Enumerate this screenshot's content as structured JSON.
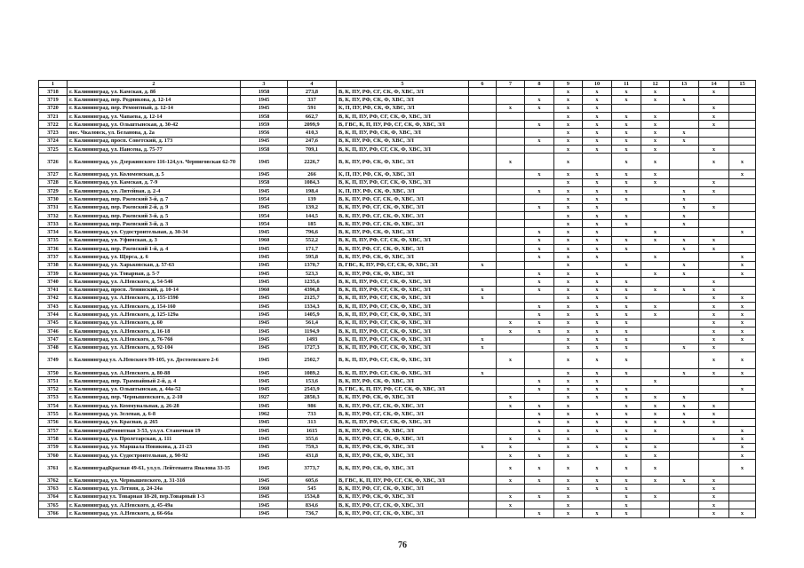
{
  "table": {
    "headers": [
      "1",
      "2",
      "3",
      "4",
      "5",
      "6",
      "7",
      "8",
      "9",
      "10",
      "11",
      "12",
      "13",
      "14",
      "15"
    ],
    "rows": [
      {
        "id": "3718",
        "address": "г. Калининград, ул. Камская, д. 8б",
        "year": "1958",
        "area": "273,8",
        "codes": "В, К, ПУ, РФ, СГ, СК, Ф, ХВС, ЭЛ",
        "marks": [
          9,
          10,
          11,
          12,
          14
        ]
      },
      {
        "id": "3719",
        "address": "г. Калининград, пер. Родникова, д. 12-14",
        "year": "1945",
        "area": "337",
        "codes": "В, К, ПУ, РФ, СК, Ф, ХВС, ЭЛ",
        "marks": [
          8,
          9,
          10,
          11,
          12,
          13
        ]
      },
      {
        "id": "3720",
        "address": "г. Калининград, пер. Ремонтный, д. 12-14",
        "year": "1945",
        "area": "591",
        "codes": "К, П, ПУ, РФ, СК, Ф, ХВС, ЭЛ",
        "marks": [
          7,
          8,
          9,
          10,
          14
        ]
      },
      {
        "id": "3721",
        "address": "г. Калининград, ул. Чапаева, д. 12-14",
        "year": "1958",
        "area": "662,7",
        "codes": "В, К, П, ПУ, РФ, СГ, СК, Ф, ХВС, ЭЛ",
        "marks": [
          9,
          10,
          11,
          12,
          14
        ]
      },
      {
        "id": "3722",
        "address": "г. Калининград, ул. Ольштынская, д. 30-42",
        "year": "1959",
        "area": "2099,9",
        "codes": "В, ГВС, К, П, ПУ, РФ, СГ, СК, Ф, ХВС, ЭЛ",
        "marks": [
          8,
          9,
          10,
          11,
          12,
          14
        ]
      },
      {
        "id": "3723",
        "address": "пос. Чкаловск, ул. Беланова, д. 2а",
        "year": "1956",
        "area": "410,3",
        "codes": "В, К, П, ПУ, РФ, СК, Ф, ХВС, ЭЛ",
        "marks": [
          9,
          10,
          11,
          12,
          13
        ]
      },
      {
        "id": "3724",
        "address": "г. Калининград, просп. Советский, д. 173",
        "year": "1945",
        "area": "247,6",
        "codes": "В, К, ПУ, РФ, СК, Ф, ХВС, ЭЛ",
        "marks": [
          8,
          9,
          10,
          11,
          12,
          13
        ]
      },
      {
        "id": "3725",
        "address": "г. Калининград, ул. Нансена, д. 75-77",
        "year": "1958",
        "area": "709,1",
        "codes": "В, К, П, ПУ, РФ, СГ, СК, Ф, ХВС, ЭЛ",
        "marks": [
          9,
          10,
          11,
          12,
          14
        ]
      },
      {
        "id": "3726",
        "address": "г. Калининград, ул. Дзержинского 116-124,ул. Черниговская 62-70",
        "year": "1945",
        "area": "2226,7",
        "codes": "В, К, ПУ, РФ, СК, Ф, ХВС, ЭЛ",
        "marks": [
          7,
          9,
          11,
          12,
          14,
          15
        ],
        "tall": true
      },
      {
        "id": "3727",
        "address": "г. Калининград, ул. Коломенская, д. 5",
        "year": "1945",
        "area": "266",
        "codes": "К, П, ПУ, РФ, СК, Ф, ХВС, ЭЛ",
        "marks": [
          8,
          9,
          10,
          11,
          12,
          15
        ]
      },
      {
        "id": "3728",
        "address": "г. Калининград, ул. Камская, д. 7-9",
        "year": "1958",
        "area": "1084,3",
        "codes": "В, К, П, ПУ, РФ, СГ, СК, Ф, ХВС, ЭЛ",
        "marks": [
          9,
          10,
          11,
          12,
          14
        ]
      },
      {
        "id": "3729",
        "address": "г. Калининград, ул. Литейная, д. 2-4",
        "year": "1945",
        "area": "198,4",
        "codes": "К, П, ПУ, РФ, СК, Ф, ХВС, ЭЛ",
        "marks": [
          8,
          9,
          10,
          11,
          13,
          14
        ]
      },
      {
        "id": "3730",
        "address": "г. Калининград, пер. Ржевский 3-й, д. 7",
        "year": "1954",
        "area": "139",
        "codes": "В, К, ПУ, РФ, СГ, СК, Ф, ХВС, ЭЛ",
        "marks": [
          9,
          10,
          11,
          13
        ]
      },
      {
        "id": "3731",
        "address": "г. Калининград, пер. Ржевский 2-й, д. 9",
        "year": "1945",
        "area": "139,2",
        "codes": "В, К, ПУ, РФ, СГ, СК, Ф, ХВС, ЭЛ",
        "marks": [
          8,
          9,
          10,
          13,
          14
        ]
      },
      {
        "id": "3732",
        "address": "г. Калининград, пер. Ржевский 3-й, д. 5",
        "year": "1954",
        "area": "144,5",
        "codes": "В, К, ПУ, РФ, СГ, СК, Ф, ХВС, ЭЛ",
        "marks": [
          9,
          10,
          11,
          13
        ]
      },
      {
        "id": "3733",
        "address": "г. Калининград, пер. Ржевский 3-й, д. 3",
        "year": "1954",
        "area": "185",
        "codes": "В, К, ПУ, РФ, СГ, СК, Ф, ХВС, ЭЛ",
        "marks": [
          9,
          10,
          11,
          13
        ]
      },
      {
        "id": "3734",
        "address": "г. Калининград, ул. Судостроительная, д. 30-34",
        "year": "1945",
        "area": "796,6",
        "codes": "В, К, ПУ, РФ, СК, Ф, ХВС, ЭЛ",
        "marks": [
          8,
          9,
          10,
          12,
          15
        ]
      },
      {
        "id": "3735",
        "address": "г. Калининград, ул. Уфимская, д. 3",
        "year": "1960",
        "area": "552,2",
        "codes": "В, К, П, ПУ, РФ, СГ, СК, Ф, ХВС, ЭЛ",
        "marks": [
          8,
          9,
          10,
          11,
          12,
          13,
          14
        ]
      },
      {
        "id": "3736",
        "address": "г. Калининград, пер. Ржевский 1-й, д. 4",
        "year": "1945",
        "area": "171,7",
        "codes": "В, К, ПУ, РФ, СГ, СК, Ф, ХВС, ЭЛ",
        "marks": [
          8,
          9,
          10,
          11,
          13,
          14
        ]
      },
      {
        "id": "3737",
        "address": "г. Калининград, ул. Щорса, д. 6",
        "year": "1945",
        "area": "595,8",
        "codes": "В, К, ПУ, РФ, СК, Ф, ХВС, ЭЛ",
        "marks": [
          8,
          9,
          10,
          12,
          15
        ]
      },
      {
        "id": "3738",
        "address": "г. Калининград, ул. Харьковская, д. 57-63",
        "year": "1945",
        "area": "1370,7",
        "codes": "В, ГВС, К, ПУ, РФ, СГ, СК, Ф, ХВС, ЭЛ",
        "marks": [
          6,
          9,
          11,
          13,
          15
        ]
      },
      {
        "id": "3739",
        "address": "г. Калининград, ул. Товарная, д. 5-7",
        "year": "1945",
        "area": "523,3",
        "codes": "В, К, ПУ, РФ, СК, Ф, ХВС, ЭЛ",
        "marks": [
          8,
          9,
          10,
          12,
          13,
          15
        ]
      },
      {
        "id": "3740",
        "address": "г. Калининград, ул. А.Невского, д. 54-54б",
        "year": "1945",
        "area": "1235,6",
        "codes": "В, К, П, ПУ, РФ, СГ, СК, Ф, ХВС, ЭЛ",
        "marks": [
          8,
          9,
          10,
          11,
          14
        ]
      },
      {
        "id": "3741",
        "address": "г. Калининград, просп. Ленинский, д. 10-14",
        "year": "1960",
        "area": "4396,8",
        "codes": "В, К, П, ПУ, РФ, СГ, СК, Ф, ХВС, ЭЛ",
        "marks": [
          6,
          8,
          9,
          10,
          11,
          12,
          13,
          14
        ]
      },
      {
        "id": "3742",
        "address": "г. Калининград, ул. А.Невского, д. 155-159б",
        "year": "1945",
        "area": "2125,7",
        "codes": "В, К, П, ПУ, РФ, СГ, СК, Ф, ХВС, ЭЛ",
        "marks": [
          6,
          9,
          10,
          11,
          14,
          15
        ]
      },
      {
        "id": "3743",
        "address": "г. Калининград, ул. А.Невского, д. 154-160",
        "year": "1945",
        "area": "1334,3",
        "codes": "В, К, П, ПУ, РФ, СГ, СК, Ф, ХВС, ЭЛ",
        "marks": [
          8,
          9,
          10,
          11,
          12,
          14,
          15
        ]
      },
      {
        "id": "3744",
        "address": "г. Калининград, ул. А.Невского, д. 125-129а",
        "year": "1945",
        "area": "1405,9",
        "codes": "В, К, П, ПУ, РФ, СГ, СК, Ф, ХВС, ЭЛ",
        "marks": [
          8,
          9,
          10,
          11,
          12,
          14,
          15
        ]
      },
      {
        "id": "3745",
        "address": "г. Калининград, ул. А.Невского, д. 60",
        "year": "1945",
        "area": "561,4",
        "codes": "В, К, П, ПУ, РФ, СГ, СК, Ф, ХВС, ЭЛ",
        "marks": [
          7,
          8,
          9,
          10,
          11,
          14,
          15
        ]
      },
      {
        "id": "3746",
        "address": "г. Калининград, ул. А.Невского, д. 16-18",
        "year": "1945",
        "area": "1194,9",
        "codes": "В, К, П, ПУ, РФ, СГ, СК, Ф, ХВС, ЭЛ",
        "marks": [
          7,
          8,
          9,
          10,
          11,
          14,
          15
        ]
      },
      {
        "id": "3747",
        "address": "г. Калининград, ул. А.Невского, д. 76-76б",
        "year": "1945",
        "area": "1493",
        "codes": "В, К, П, ПУ, РФ, СГ, СК, Ф, ХВС, ЭЛ",
        "marks": [
          6,
          9,
          10,
          11,
          14,
          15
        ]
      },
      {
        "id": "3748",
        "address": "г. Калининград, ул. А.Невского, д. 92-104",
        "year": "1945",
        "area": "1727,3",
        "codes": "В, К, П, ПУ, РФ, СГ, СК, Ф, ХВС, ЭЛ",
        "marks": [
          6,
          9,
          10,
          11,
          13,
          14
        ]
      },
      {
        "id": "3749",
        "address": "г. Калининград ул. А.Невского 99-105, ул. Достоевского 2-6",
        "year": "1945",
        "area": "2502,7",
        "codes": "В, К, П, ПУ, РФ, СГ, СК, Ф, ХВС, ЭЛ",
        "marks": [
          7,
          9,
          10,
          11,
          14,
          15
        ],
        "tall": true
      },
      {
        "id": "3750",
        "address": "г. Калининград, ул. А.Невского, д. 80-88",
        "year": "1945",
        "area": "1089,2",
        "codes": "В, К, П, ПУ, РФ, СГ, СК, Ф, ХВС, ЭЛ",
        "marks": [
          6,
          9,
          10,
          11,
          13,
          14,
          15
        ]
      },
      {
        "id": "3751",
        "address": "г. Калининград, пер. Трамвайный 2-й, д. 4",
        "year": "1945",
        "area": "153,6",
        "codes": "В, К, ПУ, РФ, СК, Ф, ХВС, ЭЛ",
        "marks": [
          8,
          9,
          10,
          12
        ]
      },
      {
        "id": "3752",
        "address": "г. Калининград, ул. Ольштынская, д. 44а-52",
        "year": "1945",
        "area": "2543,9",
        "codes": "В, ГВС, К, П, ПУ, РФ, СГ, СК, Ф, ХВС, ЭЛ",
        "marks": [
          8,
          9,
          10,
          11,
          15
        ]
      },
      {
        "id": "3753",
        "address": "г. Калининград, пер. Чернышевского, д. 2-10",
        "year": "1927",
        "area": "2850,3",
        "codes": "В, К, ПУ, РФ, СК, Ф, ХВС, ЭЛ",
        "marks": [
          7,
          9,
          10,
          11,
          12,
          13
        ]
      },
      {
        "id": "3754",
        "address": "г. Калининград, ул. Коммунальная, д. 26-28",
        "year": "1945",
        "area": "986",
        "codes": "В, К, ПУ, РФ, СГ, СК, Ф, ХВС, ЭЛ",
        "marks": [
          7,
          8,
          9,
          11,
          12,
          13,
          14
        ]
      },
      {
        "id": "3755",
        "address": "г. Калининград, ул. Зеленая, д. 6-8",
        "year": "1962",
        "area": "733",
        "codes": "В, К, ПУ, РФ, СГ, СК, Ф, ХВС, ЭЛ",
        "marks": [
          8,
          9,
          10,
          11,
          12,
          13,
          14
        ]
      },
      {
        "id": "3756",
        "address": "г. Калининград, ул. Красная, д. 265",
        "year": "1945",
        "area": "313",
        "codes": "В, К, П, ПУ, РФ, СГ, СК, Ф, ХВС, ЭЛ",
        "marks": [
          8,
          9,
          10,
          11,
          12,
          13,
          14
        ]
      },
      {
        "id": "3757",
        "address": "г. КалининградРемонтная 3-53, ул.ул. Станочная 19",
        "year": "1945",
        "area": "1615",
        "codes": "В, К, ПУ, РФ, СК, Ф, ХВС, ЭЛ",
        "marks": [
          8,
          9,
          10,
          11,
          12,
          15
        ]
      },
      {
        "id": "3758",
        "address": "г. Калининград, ул. Пролетарская, д. 111",
        "year": "1945",
        "area": "355,6",
        "codes": "В, К, ПУ, РФ, СГ, СК, Ф, ХВС, ЭЛ",
        "marks": [
          7,
          8,
          9,
          11,
          14,
          15
        ]
      },
      {
        "id": "3759",
        "address": "г. Калининград, ул. Маршала Новикова, д. 21-23",
        "year": "1945",
        "area": "759,3",
        "codes": "В, К, ПУ, РФ, СК, Ф, ХВС, ЭЛ",
        "marks": [
          6,
          7,
          9,
          10,
          11,
          12,
          15
        ]
      },
      {
        "id": "3760",
        "address": "г. Калининград, ул. Судостроительная, д. 90-92",
        "year": "1945",
        "area": "431,8",
        "codes": "В, К, ПУ, РФ, СК, Ф, ХВС, ЭЛ",
        "marks": [
          7,
          8,
          9,
          11,
          12,
          15
        ]
      },
      {
        "id": "3761",
        "address": "г. КалининградКрасная 49-61, ул.ул. Лейтенанта Яналова 33-35",
        "year": "1945",
        "area": "3773,7",
        "codes": "В, К, ПУ, РФ, СК, Ф, ХВС, ЭЛ",
        "marks": [
          7,
          8,
          9,
          10,
          11,
          12,
          15
        ],
        "tall": true
      },
      {
        "id": "3762",
        "address": "г. Калининград, ул. Чернышевского, д. 31-31б",
        "year": "1945",
        "area": "605,6",
        "codes": "В, ГВС, К, П, ПУ, РФ, СГ, СК, Ф, ХВС, ЭЛ",
        "marks": [
          7,
          8,
          9,
          10,
          11,
          12,
          13,
          14
        ]
      },
      {
        "id": "3763",
        "address": "г. Калининград, ул. Летняя, д. 24-24а",
        "year": "1960",
        "area": "545",
        "codes": "В, К, ПУ, РФ, СГ, СК, Ф, ХВС, ЭЛ",
        "marks": [
          9,
          10,
          11,
          14
        ]
      },
      {
        "id": "3764",
        "address": "г. Калининград ул. Товарная 18-20, пер.Товарный 1-3",
        "year": "1945",
        "area": "1534,8",
        "codes": "В, К, ПУ, РФ, СК, Ф, ХВС, ЭЛ",
        "marks": [
          7,
          8,
          9,
          11,
          12,
          14
        ]
      },
      {
        "id": "3765",
        "address": "г. Калининград, ул. А.Невского, д. 45-49а",
        "year": "1945",
        "area": "834,6",
        "codes": "В, К, ПУ, РФ, СГ, СК, Ф, ХВС, ЭЛ",
        "marks": [
          7,
          9,
          11,
          14
        ]
      },
      {
        "id": "3766",
        "address": "г. Калининград, ул. А.Невского, д. 66-66а",
        "year": "1945",
        "area": "736,7",
        "codes": "В, К, ПУ, РФ, СГ, СК, Ф, ХВС, ЭЛ",
        "marks": [
          8,
          9,
          10,
          11,
          14,
          15
        ]
      }
    ],
    "mark_symbol": "x"
  },
  "page_number": "76"
}
